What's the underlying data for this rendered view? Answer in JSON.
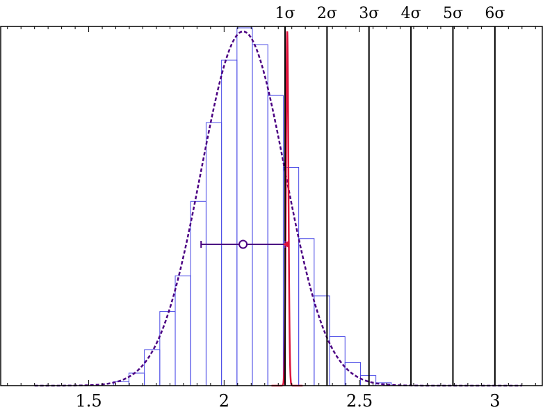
{
  "chart_data": {
    "type": "bar",
    "title": "",
    "xlabel": "",
    "ylabel": "",
    "xlim": [
      1.175,
      3.175
    ],
    "ylim": [
      0,
      1.0
    ],
    "x_ticks": [
      {
        "value": 1.5,
        "label": "1.5"
      },
      {
        "value": 2.0,
        "label": "2"
      },
      {
        "value": 2.5,
        "label": "2.5"
      },
      {
        "value": 3.0,
        "label": "3"
      }
    ],
    "histogram": {
      "bin_width": 0.057,
      "bins": [
        {
          "x": 1.62,
          "height": 0.011
        },
        {
          "x": 1.677,
          "height": 0.035
        },
        {
          "x": 1.734,
          "height": 0.1
        },
        {
          "x": 1.791,
          "height": 0.207
        },
        {
          "x": 1.848,
          "height": 0.307
        },
        {
          "x": 1.905,
          "height": 0.515
        },
        {
          "x": 1.962,
          "height": 0.735
        },
        {
          "x": 2.019,
          "height": 0.91
        },
        {
          "x": 2.076,
          "height": 1.0
        },
        {
          "x": 2.133,
          "height": 0.953
        },
        {
          "x": 2.19,
          "height": 0.811
        },
        {
          "x": 2.247,
          "height": 0.61
        },
        {
          "x": 2.304,
          "height": 0.411
        },
        {
          "x": 2.361,
          "height": 0.251
        },
        {
          "x": 2.418,
          "height": 0.137
        },
        {
          "x": 2.475,
          "height": 0.065
        },
        {
          "x": 2.532,
          "height": 0.028
        },
        {
          "x": 2.589,
          "height": 0.008
        }
      ]
    },
    "series": [
      {
        "kind": "dashed-gaussian",
        "mean": 2.07,
        "sigma": 0.155,
        "peak": 0.99,
        "x_range": [
          1.3,
          3.1
        ],
        "color": "#4b0082"
      },
      {
        "kind": "narrow-peak",
        "mean": 2.233,
        "sigma": 0.0045,
        "peak": 0.99,
        "x_range": [
          2.175,
          2.29
        ],
        "color": "#dc143c"
      }
    ],
    "point_estimate": {
      "value": 2.07,
      "low": 1.915,
      "high": 2.225,
      "y": 0.395,
      "color": "#4b0082"
    },
    "reference_marker": {
      "value": 2.233,
      "y": 0.395,
      "color": "#dc143c"
    },
    "sigma_lines": [
      {
        "x": 2.225,
        "label": "1σ"
      },
      {
        "x": 2.38,
        "label": "2σ"
      },
      {
        "x": 2.535,
        "label": "3σ"
      },
      {
        "x": 2.69,
        "label": "4σ"
      },
      {
        "x": 2.845,
        "label": "5σ"
      },
      {
        "x": 3.0,
        "label": "6σ"
      }
    ],
    "grid": false,
    "legend": "none",
    "colors": {
      "histogram": "#4a4ae6",
      "gaussian": "#4b0082",
      "peak": "#dc143c",
      "lines": "#000000"
    }
  }
}
